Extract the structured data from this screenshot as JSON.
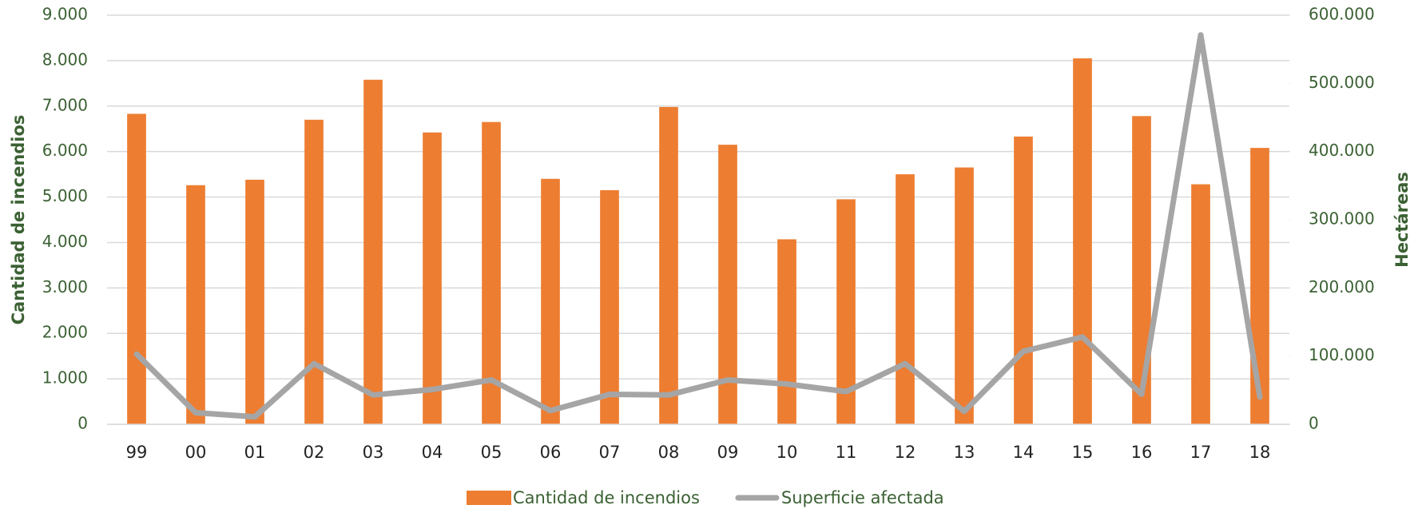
{
  "chart_data": {
    "type": "bar-line",
    "y_label": "Cantidad de incendios",
    "y2_label": "Hectáreas",
    "categories": [
      "99",
      "00",
      "01",
      "02",
      "03",
      "04",
      "05",
      "06",
      "07",
      "08",
      "09",
      "10",
      "11",
      "12",
      "13",
      "14",
      "15",
      "16",
      "17",
      "18"
    ],
    "series": [
      {
        "name": "Cantidad de incendios",
        "type": "bar",
        "color": "#ed7d31",
        "values": [
          6830,
          5260,
          5380,
          6700,
          7580,
          6420,
          6650,
          5400,
          5150,
          6980,
          6150,
          4070,
          4950,
          5500,
          5650,
          6330,
          8050,
          6780,
          5280,
          6080
        ]
      },
      {
        "name": "Superficie afectada",
        "type": "line",
        "axis": "y2",
        "color": "#a5a5a5",
        "values": [
          103000,
          17000,
          11000,
          89000,
          43000,
          51000,
          65000,
          20000,
          44000,
          43000,
          65000,
          59000,
          48000,
          89000,
          19000,
          107000,
          128000,
          44000,
          571000,
          40000
        ]
      }
    ],
    "ylim": [
      0,
      9000
    ],
    "yticks": [
      0,
      {
        "value": 1000,
        "label": "1.000"
      },
      {
        "value": 2000,
        "label": "2.000"
      },
      {
        "value": 3000,
        "label": "3.000"
      },
      {
        "value": 4000,
        "label": "4.000"
      },
      {
        "value": 5000,
        "label": "5.000"
      },
      {
        "value": 6000,
        "label": "6.000"
      },
      {
        "value": 7000,
        "label": "7.000"
      },
      {
        "value": 8000,
        "label": "8.000"
      },
      {
        "value": 9000,
        "label": "9.000"
      }
    ],
    "y2lim": [
      0,
      600000
    ],
    "y2ticks": [
      0,
      {
        "value": 100000,
        "label": "100.000"
      },
      {
        "value": 200000,
        "label": "200.000"
      },
      {
        "value": 300000,
        "label": "300.000"
      },
      {
        "value": 400000,
        "label": "400.000"
      },
      {
        "value": 500000,
        "label": "500.000"
      },
      {
        "value": 600000,
        "label": "600.000"
      }
    ],
    "grid": true,
    "legend": "bottom"
  }
}
